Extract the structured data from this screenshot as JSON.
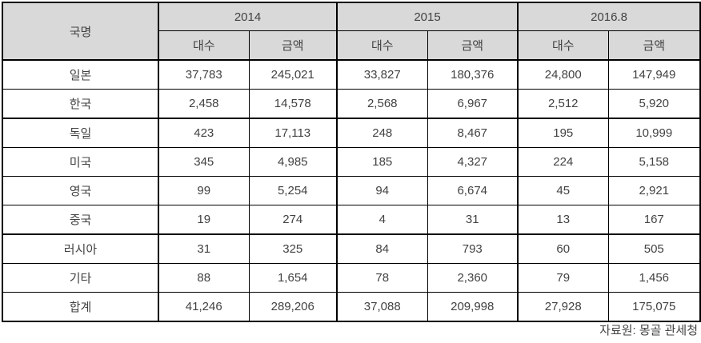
{
  "table": {
    "country_header": "국명",
    "year_groups": [
      "2014",
      "2015",
      "2016.8"
    ],
    "sub_headers": [
      "대수",
      "금액"
    ],
    "rows": [
      {
        "country": "일본",
        "values": [
          "37,783",
          "245,021",
          "33,827",
          "180,376",
          "24,800",
          "147,949"
        ]
      },
      {
        "country": "한국",
        "values": [
          "2,458",
          "14,578",
          "2,568",
          "6,967",
          "2,512",
          "5,920"
        ]
      },
      {
        "country": "독일",
        "values": [
          "423",
          "17,113",
          "248",
          "8,467",
          "195",
          "10,999"
        ]
      },
      {
        "country": "미국",
        "values": [
          "345",
          "4,985",
          "185",
          "4,327",
          "224",
          "5,158"
        ]
      },
      {
        "country": "영국",
        "values": [
          "99",
          "5,254",
          "94",
          "6,674",
          "45",
          "2,921"
        ]
      },
      {
        "country": "중국",
        "values": [
          "19",
          "274",
          "4",
          "31",
          "13",
          "167"
        ]
      },
      {
        "country": "러시아",
        "values": [
          "31",
          "325",
          "84",
          "793",
          "60",
          "505"
        ]
      },
      {
        "country": "기타",
        "values": [
          "88",
          "1,654",
          "78",
          "2,360",
          "79",
          "1,456"
        ]
      },
      {
        "country": "합계",
        "values": [
          "41,246",
          "289,206",
          "37,088",
          "209,998",
          "27,928",
          "175,075"
        ]
      }
    ],
    "group_break_after_row_indexes": [
      1,
      5
    ]
  },
  "footer": {
    "source": "자료원: 몽골 관세청"
  },
  "colors": {
    "header_bg": "#d9d9d9",
    "border": "#000000",
    "text": "#424242"
  }
}
